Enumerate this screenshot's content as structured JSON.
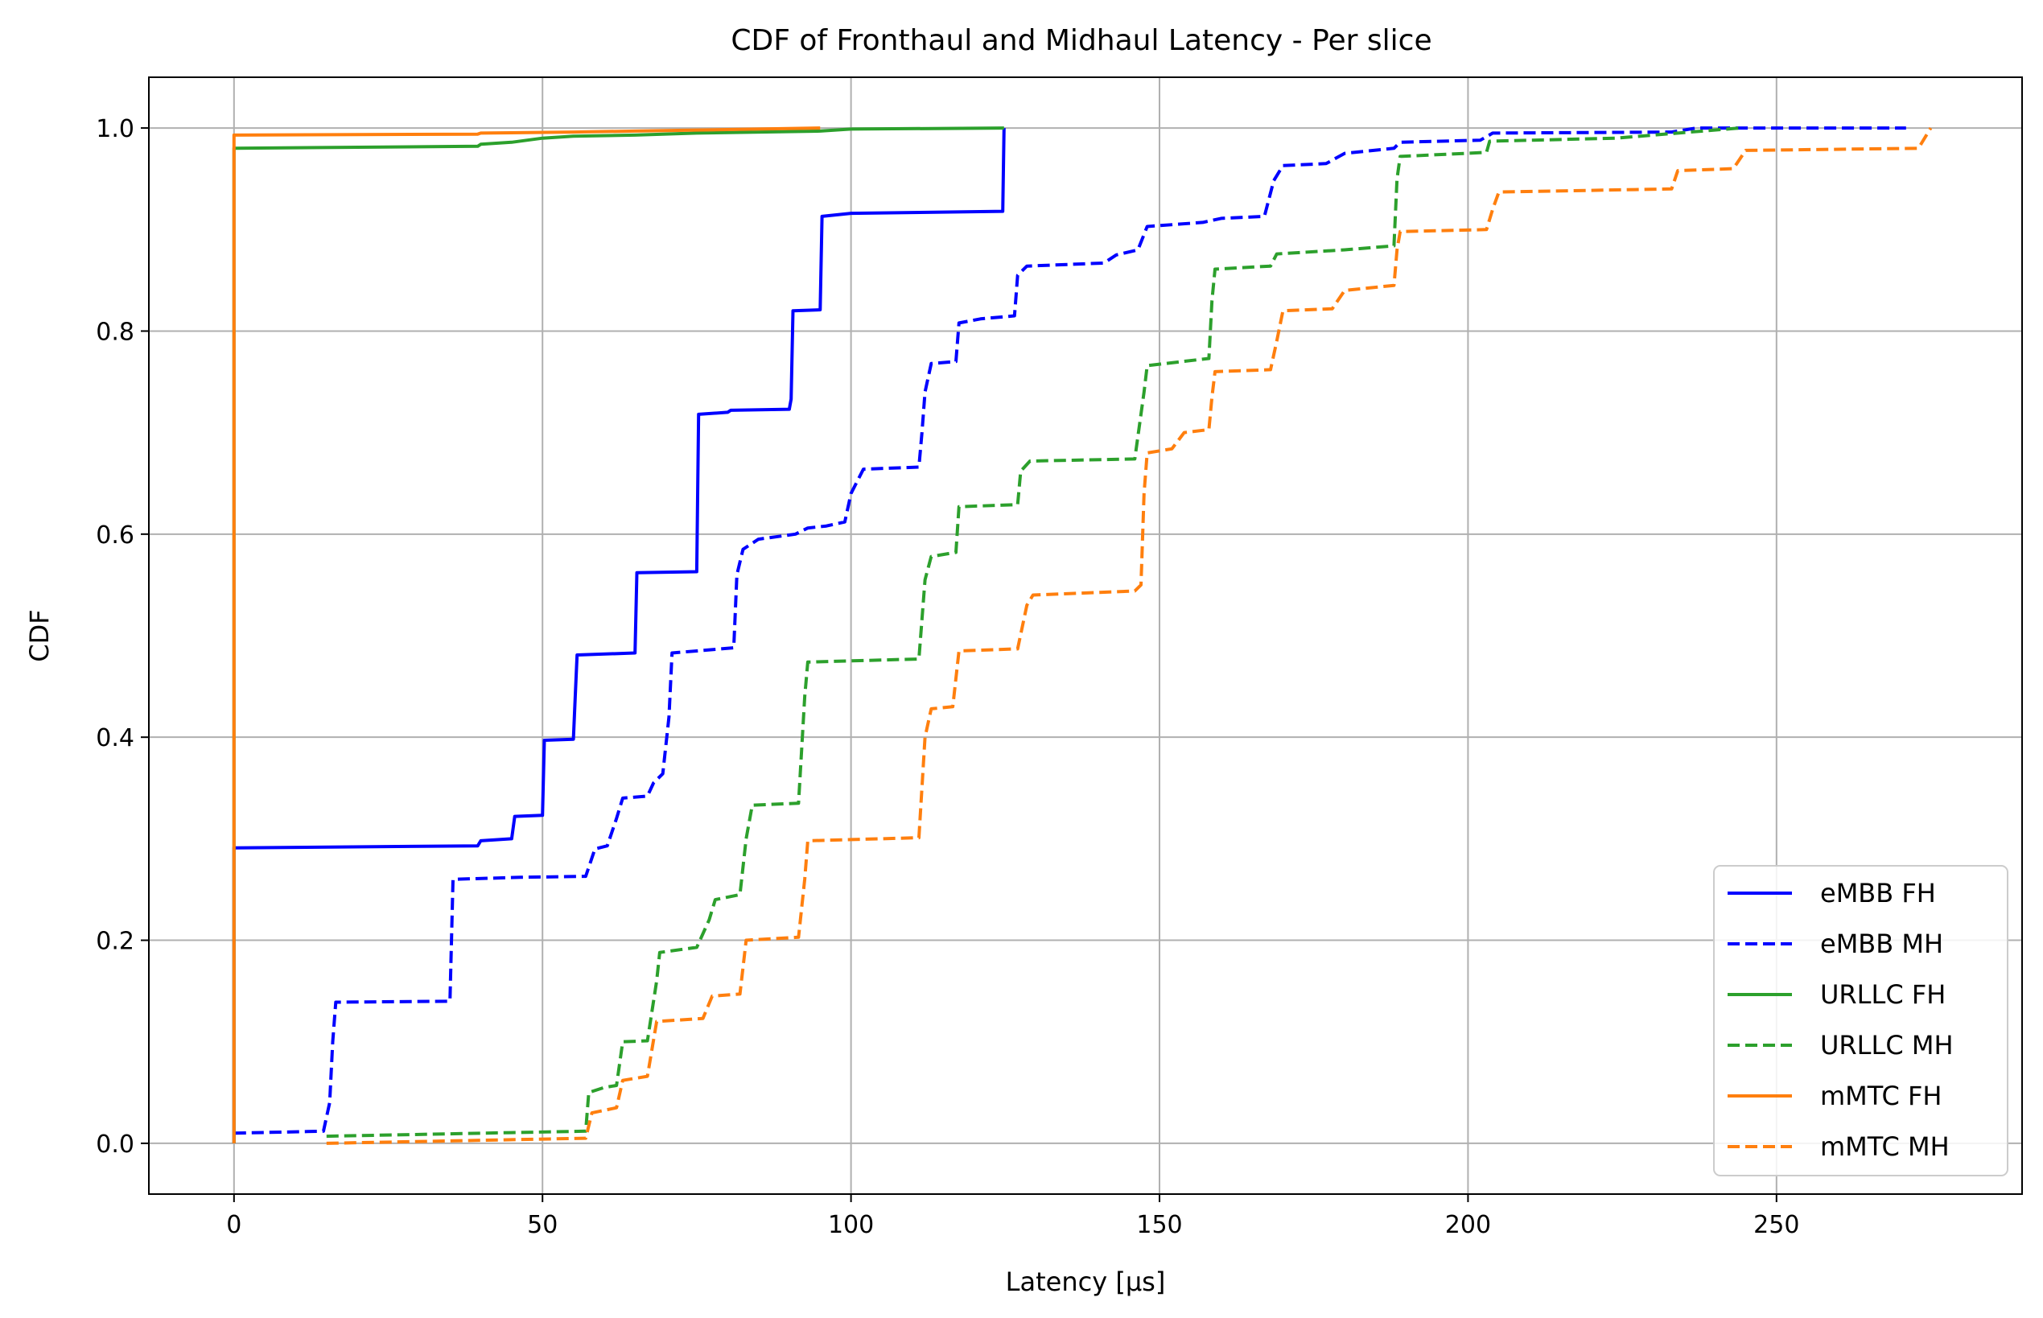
{
  "chart_data": {
    "type": "line",
    "title": "CDF of Fronthaul and Midhaul Latency - Per slice",
    "xlabel": "Latency [µs]",
    "ylabel": "CDF",
    "xlim": [
      -13.8,
      289.8
    ],
    "ylim": [
      -0.05,
      1.05
    ],
    "xticks": [
      0,
      50,
      100,
      150,
      200,
      250
    ],
    "xtick_labels": [
      "0",
      "50",
      "100",
      "150",
      "200",
      "250"
    ],
    "yticks": [
      0.0,
      0.2,
      0.4,
      0.6,
      0.8,
      1.0
    ],
    "ytick_labels": [
      "0.0",
      "0.2",
      "0.4",
      "0.6",
      "0.8",
      "1.0"
    ],
    "grid": true,
    "legend_position": "lower-right",
    "series": [
      {
        "name": "eMBB FH",
        "color": "#0000ff",
        "dash": "solid",
        "points": [
          [
            0,
            0
          ],
          [
            0,
            0.291
          ],
          [
            39.5,
            0.293
          ],
          [
            40,
            0.298
          ],
          [
            45,
            0.3
          ],
          [
            45.5,
            0.322
          ],
          [
            50,
            0.323
          ],
          [
            50.3,
            0.397
          ],
          [
            55,
            0.398
          ],
          [
            55.3,
            0.44
          ],
          [
            55.6,
            0.481
          ],
          [
            65,
            0.483
          ],
          [
            65.3,
            0.562
          ],
          [
            75,
            0.563
          ],
          [
            75.3,
            0.718
          ],
          [
            80,
            0.72
          ],
          [
            80.5,
            0.722
          ],
          [
            90,
            0.723
          ],
          [
            90.3,
            0.733
          ],
          [
            90.6,
            0.82
          ],
          [
            95,
            0.821
          ],
          [
            95.3,
            0.913
          ],
          [
            100,
            0.916
          ],
          [
            124.6,
            0.918
          ],
          [
            124.8,
            1.0
          ]
        ]
      },
      {
        "name": "eMBB MH",
        "color": "#0000ff",
        "dash": "dashed",
        "points": [
          [
            0,
            0.01
          ],
          [
            14.5,
            0.012
          ],
          [
            15.5,
            0.04
          ],
          [
            16,
            0.1
          ],
          [
            16.5,
            0.139
          ],
          [
            35,
            0.14
          ],
          [
            35.5,
            0.26
          ],
          [
            46.5,
            0.262
          ],
          [
            57,
            0.263
          ],
          [
            58.5,
            0.29
          ],
          [
            60.5,
            0.293
          ],
          [
            62,
            0.32
          ],
          [
            63,
            0.34
          ],
          [
            67,
            0.342
          ],
          [
            68,
            0.355
          ],
          [
            69.5,
            0.364
          ],
          [
            70.5,
            0.42
          ],
          [
            71,
            0.483
          ],
          [
            81,
            0.488
          ],
          [
            81.5,
            0.56
          ],
          [
            82.5,
            0.585
          ],
          [
            85,
            0.595
          ],
          [
            91,
            0.6
          ],
          [
            93,
            0.606
          ],
          [
            96,
            0.608
          ],
          [
            99,
            0.612
          ],
          [
            100,
            0.64
          ],
          [
            102,
            0.664
          ],
          [
            111,
            0.666
          ],
          [
            111.5,
            0.7
          ],
          [
            112,
            0.74
          ],
          [
            113,
            0.768
          ],
          [
            117,
            0.77
          ],
          [
            117.5,
            0.808
          ],
          [
            121,
            0.812
          ],
          [
            126.5,
            0.815
          ],
          [
            127,
            0.855
          ],
          [
            128.5,
            0.864
          ],
          [
            141,
            0.867
          ],
          [
            143,
            0.875
          ],
          [
            146.5,
            0.88
          ],
          [
            148,
            0.903
          ],
          [
            157,
            0.907
          ],
          [
            160,
            0.911
          ],
          [
            167,
            0.913
          ],
          [
            168.5,
            0.948
          ],
          [
            170,
            0.963
          ],
          [
            177,
            0.965
          ],
          [
            180,
            0.975
          ],
          [
            188,
            0.98
          ],
          [
            189,
            0.986
          ],
          [
            202,
            0.988
          ],
          [
            204,
            0.995
          ],
          [
            233,
            0.996
          ],
          [
            237,
            1.0
          ],
          [
            271,
            1.0
          ]
        ]
      },
      {
        "name": "URLLC FH",
        "color": "#2ca02c",
        "dash": "solid",
        "points": [
          [
            0,
            0
          ],
          [
            0,
            0.98
          ],
          [
            39.5,
            0.982
          ],
          [
            40,
            0.984
          ],
          [
            45,
            0.986
          ],
          [
            50,
            0.99
          ],
          [
            55,
            0.992
          ],
          [
            65,
            0.993
          ],
          [
            75,
            0.995
          ],
          [
            95,
            0.997
          ],
          [
            100,
            0.999
          ],
          [
            124.8,
            1.0
          ]
        ]
      },
      {
        "name": "URLLC MH",
        "color": "#2ca02c",
        "dash": "dashed",
        "points": [
          [
            15,
            0.007
          ],
          [
            57,
            0.012
          ],
          [
            57.5,
            0.05
          ],
          [
            60,
            0.055
          ],
          [
            62,
            0.057
          ],
          [
            63,
            0.1
          ],
          [
            67,
            0.101
          ],
          [
            68.5,
            0.16
          ],
          [
            69,
            0.188
          ],
          [
            75,
            0.193
          ],
          [
            77,
            0.22
          ],
          [
            78,
            0.24
          ],
          [
            82,
            0.245
          ],
          [
            83,
            0.3
          ],
          [
            84,
            0.333
          ],
          [
            91.5,
            0.335
          ],
          [
            92.5,
            0.44
          ],
          [
            93,
            0.474
          ],
          [
            111,
            0.477
          ],
          [
            112,
            0.555
          ],
          [
            113,
            0.578
          ],
          [
            117,
            0.582
          ],
          [
            117.5,
            0.627
          ],
          [
            127,
            0.629
          ],
          [
            127.5,
            0.662
          ],
          [
            129,
            0.672
          ],
          [
            146,
            0.674
          ],
          [
            147.5,
            0.74
          ],
          [
            148,
            0.766
          ],
          [
            158,
            0.773
          ],
          [
            158.5,
            0.83
          ],
          [
            159,
            0.861
          ],
          [
            168,
            0.864
          ],
          [
            169,
            0.876
          ],
          [
            180,
            0.88
          ],
          [
            188,
            0.884
          ],
          [
            188.5,
            0.95
          ],
          [
            189,
            0.972
          ],
          [
            203,
            0.976
          ],
          [
            203.5,
            0.987
          ],
          [
            224,
            0.99
          ],
          [
            230,
            0.993
          ],
          [
            244,
            1.0
          ]
        ]
      },
      {
        "name": "mMTC FH",
        "color": "#ff7f0e",
        "dash": "solid",
        "points": [
          [
            0,
            0
          ],
          [
            0,
            0.993
          ],
          [
            39.5,
            0.994
          ],
          [
            40,
            0.995
          ],
          [
            55,
            0.996
          ],
          [
            65,
            0.997
          ],
          [
            75,
            0.998
          ],
          [
            95,
            1.0
          ]
        ]
      },
      {
        "name": "mMTC MH",
        "color": "#ff7f0e",
        "dash": "dashed",
        "points": [
          [
            15,
            0
          ],
          [
            57,
            0.005
          ],
          [
            58,
            0.03
          ],
          [
            62,
            0.035
          ],
          [
            63,
            0.062
          ],
          [
            67,
            0.066
          ],
          [
            68.5,
            0.12
          ],
          [
            76,
            0.123
          ],
          [
            77.5,
            0.145
          ],
          [
            82,
            0.147
          ],
          [
            83,
            0.2
          ],
          [
            91.5,
            0.203
          ],
          [
            92.5,
            0.26
          ],
          [
            93,
            0.298
          ],
          [
            111,
            0.301
          ],
          [
            112,
            0.4
          ],
          [
            113,
            0.428
          ],
          [
            116.5,
            0.43
          ],
          [
            117.5,
            0.485
          ],
          [
            127,
            0.487
          ],
          [
            128.5,
            0.53
          ],
          [
            129.5,
            0.54
          ],
          [
            146,
            0.544
          ],
          [
            147,
            0.55
          ],
          [
            147.5,
            0.64
          ],
          [
            148,
            0.68
          ],
          [
            152,
            0.684
          ],
          [
            154,
            0.7
          ],
          [
            158,
            0.703
          ],
          [
            158.5,
            0.735
          ],
          [
            159,
            0.76
          ],
          [
            168,
            0.762
          ],
          [
            169,
            0.79
          ],
          [
            170,
            0.82
          ],
          [
            178,
            0.822
          ],
          [
            180,
            0.84
          ],
          [
            188,
            0.845
          ],
          [
            188.5,
            0.88
          ],
          [
            189,
            0.898
          ],
          [
            203,
            0.9
          ],
          [
            204,
            0.92
          ],
          [
            205,
            0.937
          ],
          [
            233,
            0.94
          ],
          [
            234,
            0.958
          ],
          [
            243,
            0.96
          ],
          [
            245,
            0.978
          ],
          [
            273,
            0.98
          ],
          [
            275,
            1.0
          ]
        ]
      }
    ]
  }
}
